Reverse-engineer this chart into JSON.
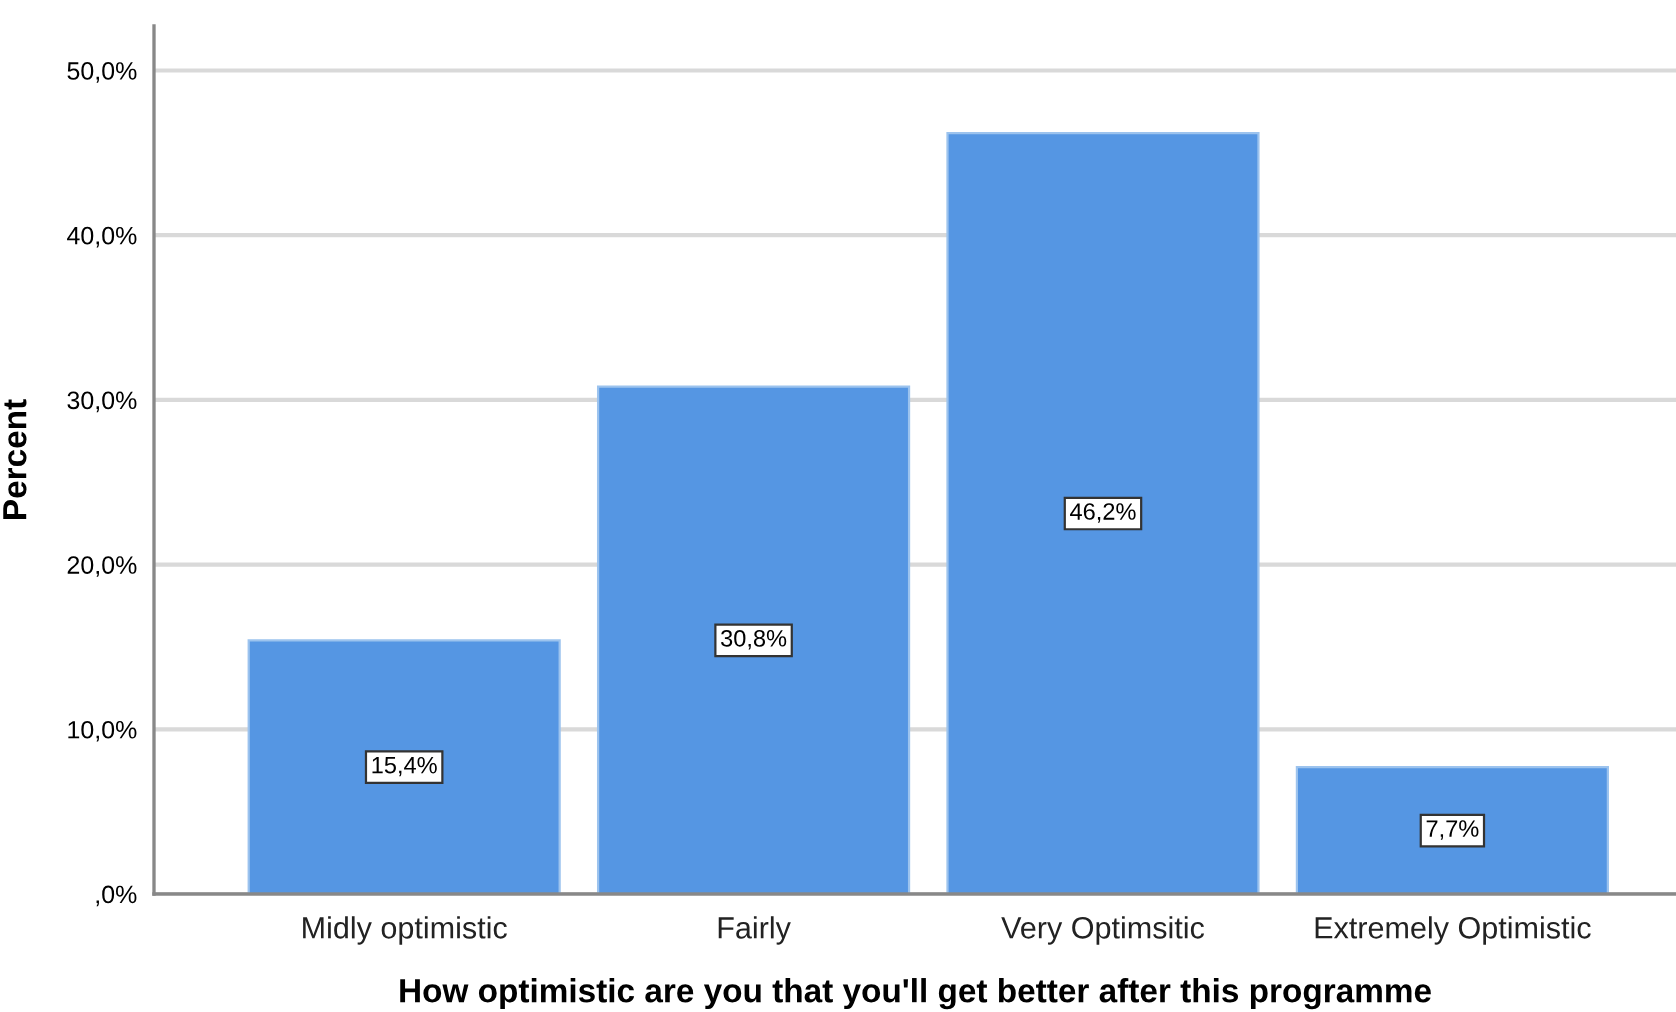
{
  "chart_data": {
    "type": "bar",
    "xlabel": "How optimistic are you that you'll get better after this programme",
    "ylabel": "Percent",
    "categories": [
      "Midly optimistic",
      "Fairly",
      "Very Optimsitic",
      "Extremely Optimistic"
    ],
    "values": [
      15.4,
      30.8,
      46.2,
      7.7
    ],
    "color": "#5596e3",
    "value_labels": [
      "15,4%",
      "30,8%",
      "46,2%",
      "7,7%"
    ],
    "ylim": [
      0,
      52.7
    ],
    "yticks": [
      {
        "value": 0,
        "label": ",0%"
      },
      {
        "value": 10,
        "label": "10,0%"
      },
      {
        "value": 20,
        "label": "20,0%"
      },
      {
        "value": 30,
        "label": "30,0%"
      },
      {
        "value": 40,
        "label": "40,0%"
      },
      {
        "value": 50,
        "label": "50,0%"
      }
    ],
    "grid": "y",
    "legend": false
  }
}
